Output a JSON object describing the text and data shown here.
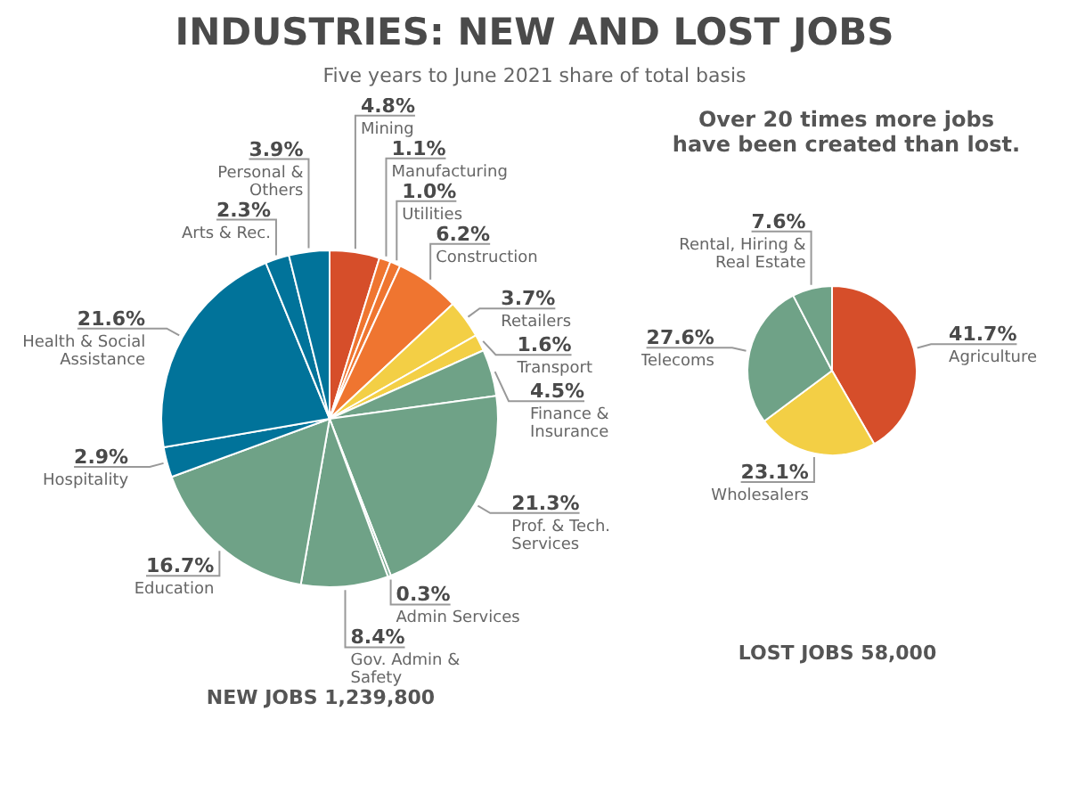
{
  "chart_data": [
    {
      "type": "pie",
      "title": "INDUSTRIES: NEW AND LOST JOBS",
      "subtitle": "Five years to June 2021 share of total basis",
      "categories": [
        "Mining",
        "Manufacturing",
        "Utilities",
        "Construction",
        "Retailers",
        "Transport",
        "Finance & Insurance",
        "Prof. & Tech. Services",
        "Admin Services",
        "Gov. Admin & Safety",
        "Education",
        "Hospitality",
        "Health & Social Assistance",
        "Arts & Rec.",
        "Personal & Others"
      ],
      "values": [
        4.8,
        1.1,
        1.0,
        6.2,
        3.7,
        1.6,
        4.5,
        21.3,
        0.3,
        8.4,
        16.7,
        2.9,
        21.6,
        2.3,
        3.9
      ],
      "value_labels": [
        "4.8%",
        "1.1%",
        "1.0%",
        "6.2%",
        "3.7%",
        "1.6%",
        "4.5%",
        "21.3%",
        "0.3%",
        "8.4%",
        "16.7%",
        "2.9%",
        "21.6%",
        "2.3%",
        "3.9%"
      ],
      "colors": [
        "#d64e2a",
        "#ef7530",
        "#ef7530",
        "#ef7530",
        "#f3cf45",
        "#f3cf45",
        "#6fa287",
        "#6fa287",
        "#6fa287",
        "#6fa287",
        "#6fa287",
        "#01739a",
        "#01739a",
        "#01739a",
        "#01739a"
      ],
      "annotations": [
        "NEW JOBS 1,239,800"
      ],
      "legend": false
    },
    {
      "type": "pie",
      "categories": [
        "Agriculture",
        "Wholesalers",
        "Telecoms",
        "Rental, Hiring & Real Estate"
      ],
      "values": [
        41.7,
        23.1,
        27.6,
        7.6
      ],
      "value_labels": [
        "41.7%",
        "23.1%",
        "27.6%",
        "7.6%"
      ],
      "colors": [
        "#d64e2a",
        "#f3cf45",
        "#6fa287",
        "#6fa287"
      ],
      "annotations": [
        "Over 20 times more jobs have been created than lost.",
        "LOST JOBS 58,000"
      ],
      "legend": false
    }
  ]
}
